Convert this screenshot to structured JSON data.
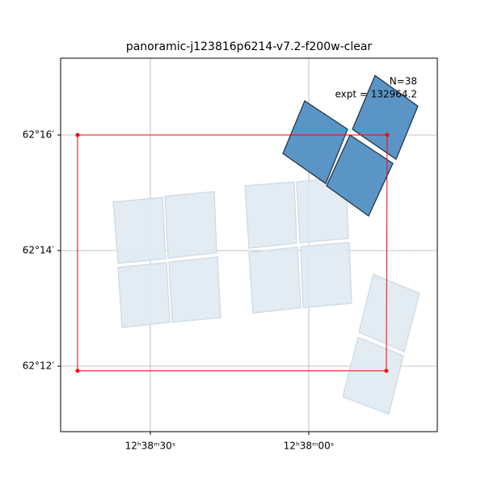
{
  "chart_data": {
    "type": "footprint",
    "title": "panoramic-j123816p6214-v7.2-f200w-clear",
    "annotations": [
      "N=38",
      "expt = 132964.2"
    ],
    "xlim": [
      46.99,
      -24.34
    ],
    "ylim": [
      10.867,
      17.329
    ],
    "xticks": [
      {
        "value": 30,
        "label": "12ʰ38ᵐ30ˢ"
      },
      {
        "value": 0,
        "label": "12ʰ38ᵐ00ˢ"
      }
    ],
    "yticks": [
      {
        "value": 16,
        "label": "62°16′"
      },
      {
        "value": 14,
        "label": "62°14′"
      },
      {
        "value": 12,
        "label": "62°12′"
      }
    ],
    "grid": true,
    "series": [
      {
        "color": "#e0eaf2",
        "edge": "#cddbe6",
        "footprints": [
          {
            "x": [
              37.04,
              27.7,
              27.09,
              36.12
            ],
            "y": [
              14.84,
              14.92,
              13.86,
              13.78
            ]
          },
          {
            "x": [
              27.24,
              17.91,
              17.45,
              26.63
            ],
            "y": [
              14.94,
              15.02,
              13.96,
              13.87
            ]
          },
          {
            "x": [
              36.12,
              26.94,
              26.33,
              35.36
            ],
            "y": [
              13.71,
              13.79,
              12.76,
              12.67
            ]
          },
          {
            "x": [
              26.48,
              17.3,
              16.68,
              25.87
            ],
            "y": [
              13.8,
              13.89,
              12.84,
              12.76
            ]
          },
          {
            "x": [
              12.09,
              2.76,
              2.3,
              11.33
            ],
            "y": [
              15.12,
              15.19,
              14.13,
              14.04
            ]
          },
          {
            "x": [
              2.3,
              -7.04,
              -7.5,
              1.68
            ],
            "y": [
              15.19,
              15.27,
              14.21,
              14.14
            ]
          },
          {
            "x": [
              11.33,
              2.14,
              1.53,
              10.56
            ],
            "y": [
              13.97,
              14.06,
              13.01,
              12.92
            ]
          },
          {
            "x": [
              1.53,
              -7.65,
              -8.11,
              1.07
            ],
            "y": [
              14.07,
              14.14,
              13.09,
              13.01
            ]
          },
          {
            "x": [
              -12.24,
              -20.97,
              -18.06,
              -9.49
            ],
            "y": [
              13.59,
              13.26,
              12.25,
              12.59
            ]
          },
          {
            "x": [
              -9.34,
              -17.91,
              -15.15,
              -6.43
            ],
            "y": [
              12.5,
              12.18,
              11.17,
              11.47
            ]
          }
        ]
      },
      {
        "color": "#5b95c6",
        "edge": "#22384c",
        "footprints": [
          {
            "x": [
              0.77,
              -7.35,
              -3.21,
              4.9
            ],
            "y": [
              16.59,
              16.1,
              15.16,
              15.68
            ]
          },
          {
            "x": [
              -12.55,
              -20.66,
              -16.53,
              -8.27
            ],
            "y": [
              17.03,
              16.5,
              15.58,
              16.1
            ]
          },
          {
            "x": [
              -7.81,
              -15.92,
              -11.33,
              -3.37
            ],
            "y": [
              16.0,
              15.51,
              14.6,
              15.12
            ]
          }
        ]
      },
      {
        "color": "red",
        "edge": "red",
        "outline": true,
        "footprints": [
          {
            "x": [
              43.78,
              -14.85,
              -14.69,
              43.78
            ],
            "y": [
              16.0,
              16.0,
              11.92,
              11.92
            ]
          }
        ]
      }
    ]
  }
}
